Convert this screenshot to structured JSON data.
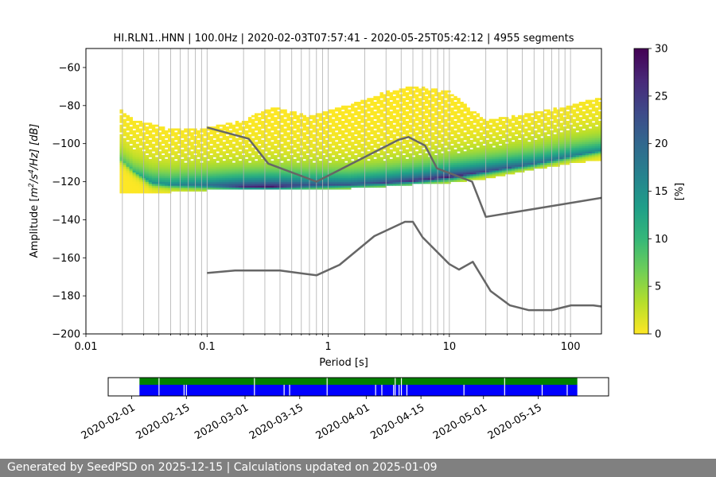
{
  "chart_data": {
    "type": "heatmap",
    "title": "HI.RLN1..HNN | 100.0Hz | 2020-02-03T07:57:41 - 2020-05-25T05:42:12 | 4955 segments",
    "xlabel": "Period [s]",
    "ylabel_main": "Amplitude [",
    "ylabel_units_base": "m",
    "ylabel_units_exp1": "2",
    "ylabel_units_mid": "/s",
    "ylabel_units_exp2": "4",
    "ylabel_units_tail": "/Hz] [dB]",
    "x_scale": "log",
    "xlim": [
      0.01,
      180
    ],
    "ylim": [
      -200,
      -50
    ],
    "x_ticks": [
      {
        "value": 0.01,
        "label": "0.01"
      },
      {
        "value": 0.1,
        "label": "0.1"
      },
      {
        "value": 1,
        "label": "1"
      },
      {
        "value": 10,
        "label": "10"
      },
      {
        "value": 100,
        "label": "100"
      }
    ],
    "y_ticks": [
      {
        "value": -60,
        "label": "−60"
      },
      {
        "value": -80,
        "label": "−80"
      },
      {
        "value": -100,
        "label": "−100"
      },
      {
        "value": -120,
        "label": "−120"
      },
      {
        "value": -140,
        "label": "−140"
      },
      {
        "value": -160,
        "label": "−160"
      },
      {
        "value": -180,
        "label": "−180"
      },
      {
        "value": -200,
        "label": "−200"
      }
    ],
    "grid": true,
    "colorbar": {
      "label": "[%]",
      "range": [
        0,
        30
      ],
      "ticks": [
        {
          "value": 0,
          "label": "0"
        },
        {
          "value": 5,
          "label": "5"
        },
        {
          "value": 10,
          "label": "10"
        },
        {
          "value": 15,
          "label": "15"
        },
        {
          "value": 20,
          "label": "20"
        },
        {
          "value": 25,
          "label": "25"
        },
        {
          "value": 30,
          "label": "30"
        }
      ],
      "colormap": [
        "#fde725",
        "#b5de2b",
        "#6ece58",
        "#35b779",
        "#1f9e89",
        "#26828e",
        "#31688e",
        "#3e4989",
        "#482878",
        "#440154"
      ]
    },
    "noise_models": [
      {
        "name": "high",
        "points": [
          [
            0.1,
            -91.5
          ],
          [
            0.22,
            -97.4
          ],
          [
            0.32,
            -110.5
          ],
          [
            0.8,
            -120
          ],
          [
            3.8,
            -98
          ],
          [
            4.6,
            -96.5
          ],
          [
            6.3,
            -101
          ],
          [
            7.9,
            -113
          ],
          [
            15.4,
            -120
          ],
          [
            20,
            -138.5
          ],
          [
            180,
            -128.5
          ]
        ]
      },
      {
        "name": "low",
        "points": [
          [
            0.1,
            -168
          ],
          [
            0.17,
            -166.7
          ],
          [
            0.4,
            -166.7
          ],
          [
            0.8,
            -169.2
          ],
          [
            1.24,
            -163.7
          ],
          [
            2.4,
            -148.6
          ],
          [
            4.3,
            -141.1
          ],
          [
            5.0,
            -141.1
          ],
          [
            6.0,
            -149.2
          ],
          [
            10,
            -163.3
          ],
          [
            12,
            -166.2
          ],
          [
            15.6,
            -162.1
          ],
          [
            21.9,
            -177.5
          ],
          [
            31.6,
            -185
          ],
          [
            45,
            -187.5
          ],
          [
            70,
            -187.5
          ],
          [
            101,
            -185
          ],
          [
            154,
            -185
          ],
          [
            180,
            -185.6
          ]
        ]
      }
    ],
    "psd_bands": [
      {
        "period": 0.019,
        "min": -126,
        "max": -82,
        "mode": -108,
        "mode_pct": 8
      },
      {
        "period": 0.025,
        "min": -126,
        "max": -88,
        "mode": -115,
        "mode_pct": 10
      },
      {
        "period": 0.035,
        "min": -126,
        "max": -90,
        "mode": -121,
        "mode_pct": 15
      },
      {
        "period": 0.05,
        "min": -125,
        "max": -93,
        "mode": -122,
        "mode_pct": 16
      },
      {
        "period": 0.1,
        "min": -124,
        "max": -92,
        "mode": -122.5,
        "mode_pct": 20
      },
      {
        "period": 0.2,
        "min": -124,
        "max": -88,
        "mode": -123,
        "mode_pct": 26
      },
      {
        "period": 0.35,
        "min": -124,
        "max": -81,
        "mode": -123,
        "mode_pct": 28
      },
      {
        "period": 0.7,
        "min": -124,
        "max": -86,
        "mode": -122.5,
        "mode_pct": 24
      },
      {
        "period": 1.5,
        "min": -123,
        "max": -80,
        "mode": -122,
        "mode_pct": 22
      },
      {
        "period": 3,
        "min": -122,
        "max": -73,
        "mode": -121,
        "mode_pct": 24
      },
      {
        "period": 5,
        "min": -121,
        "max": -70,
        "mode": -120,
        "mode_pct": 26
      },
      {
        "period": 10,
        "min": -120,
        "max": -73,
        "mode": -118,
        "mode_pct": 28
      },
      {
        "period": 20,
        "min": -118,
        "max": -88,
        "mode": -115,
        "mode_pct": 24
      },
      {
        "period": 50,
        "min": -113,
        "max": -84,
        "mode": -111,
        "mode_pct": 20
      },
      {
        "period": 100,
        "min": -110,
        "max": -80,
        "mode": -107,
        "mode_pct": 18
      },
      {
        "period": 180,
        "min": -108,
        "max": -76,
        "mode": -104,
        "mode_pct": 16
      }
    ],
    "availability": {
      "x_range": [
        "2020-01-26",
        "2020-06-02"
      ],
      "x_ticks": [
        "2020-02-01",
        "2020-02-15",
        "2020-03-01",
        "2020-03-15",
        "2020-04-01",
        "2020-04-15",
        "2020-05-01",
        "2020-05-15"
      ],
      "data_start": "2020-02-03",
      "data_end": "2020-05-25",
      "data_color": "#0000ff",
      "segment_color": "#008000",
      "gaps": [
        "2020-02-08",
        "2020-02-14",
        "2020-02-15",
        "2020-03-03",
        "2020-03-11",
        "2020-03-12",
        "2020-03-22",
        "2020-04-03",
        "2020-04-05",
        "2020-04-08",
        "2020-04-08",
        "2020-04-09",
        "2020-04-10",
        "2020-04-11",
        "2020-04-26",
        "2020-05-06",
        "2020-05-16",
        "2020-05-22"
      ]
    }
  },
  "footer": {
    "text": "Generated by SeedPSD on 2025-12-15 | Calculations updated on 2025-01-09"
  }
}
